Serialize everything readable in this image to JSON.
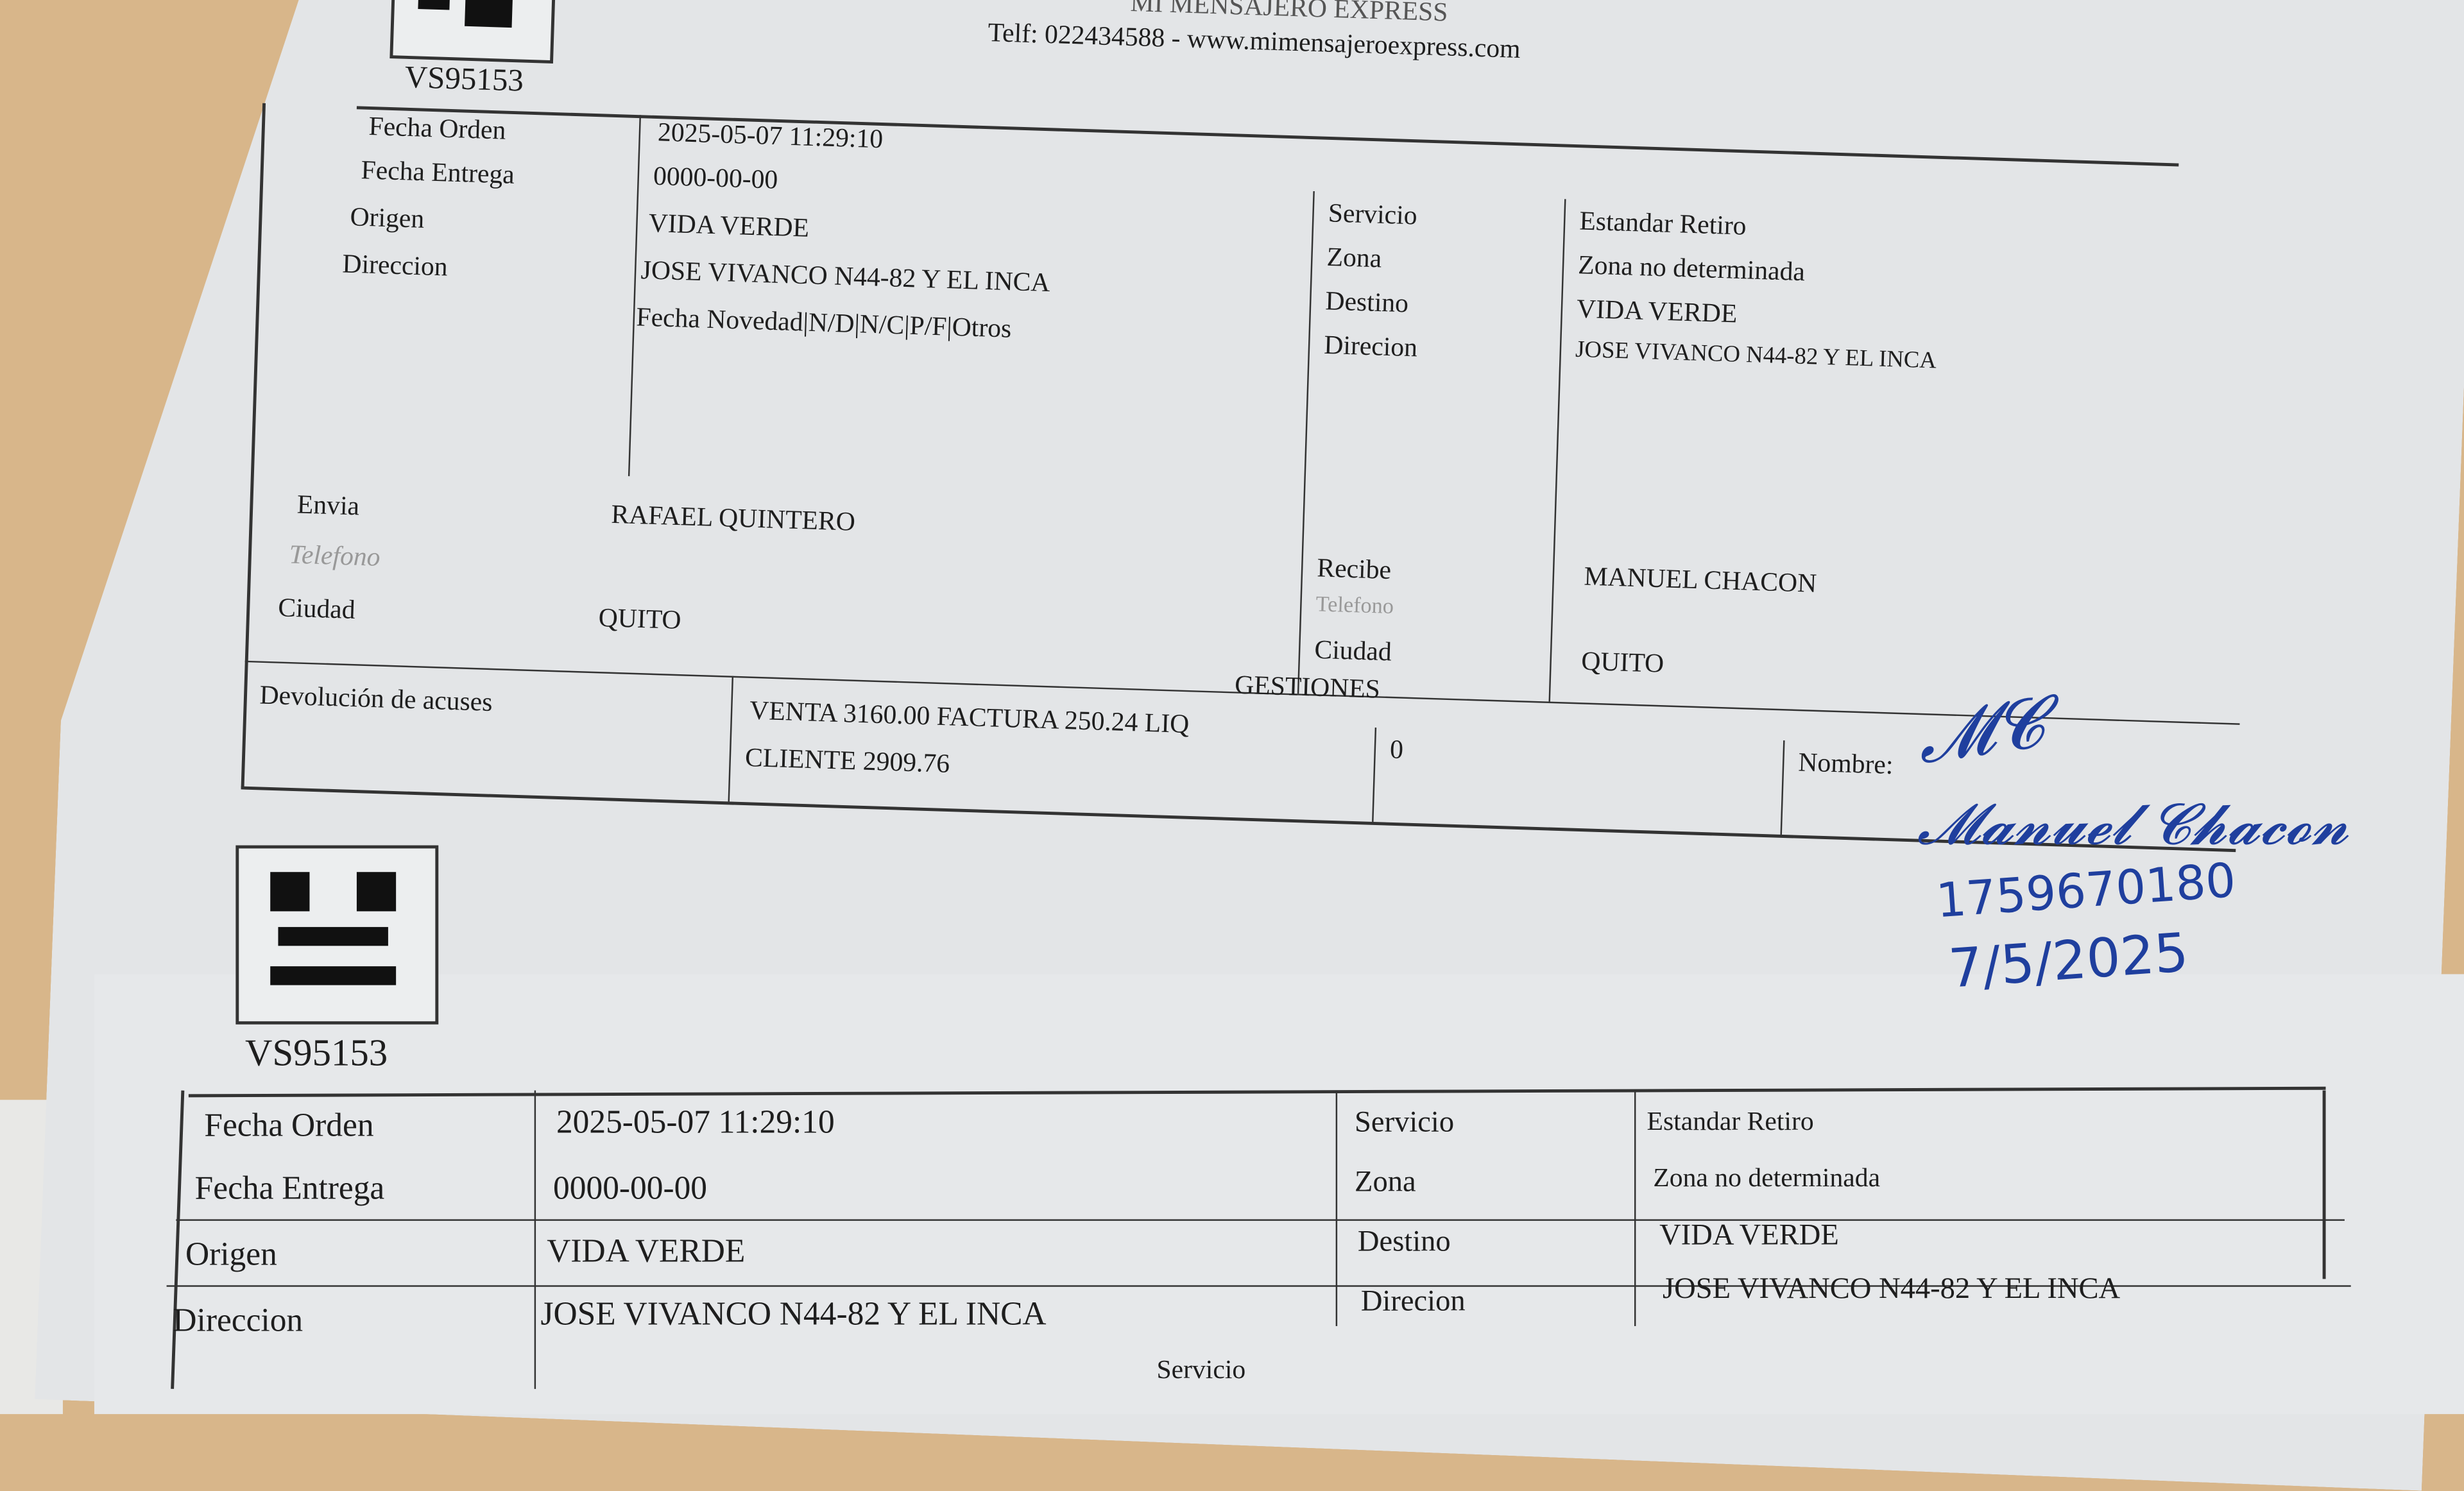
{
  "header": {
    "company": "MI MENSAJERO EXPRESS",
    "contact": "Telf: 022434588 - www.mimensajeroexpress.com"
  },
  "upper_form": {
    "guide_number": "VS95153",
    "fecha_orden_label": "Fecha Orden",
    "fecha_orden": "2025-05-07 11:29:10",
    "fecha_entrega_label": "Fecha Entrega",
    "fecha_entrega": "0000-00-00",
    "origen_label": "Origen",
    "origen": "VIDA VERDE",
    "direccion_label": "Direccion",
    "direccion": "JOSE VIVANCO N44-82 Y EL INCA",
    "novedad_header": "Fecha Novedad|N/D|N/C|P/F|Otros",
    "envia_label": "Envia",
    "envia": "RAFAEL QUINTERO",
    "telefono_label": "Telefono",
    "ciudad_label": "Ciudad",
    "ciudad": "QUITO",
    "servicio_label": "Servicio",
    "servicio": "Estandar Retiro",
    "zona_label": "Zona",
    "zona": "Zona no determinada",
    "destino_label": "Destino",
    "destino": "VIDA VERDE",
    "direcion_label": "Direcion",
    "direcion": "JOSE VIVANCO N44-82 Y EL INCA",
    "recibe_label": "Recibe",
    "recibe": "MANUEL CHACON",
    "telefono2_label": "Telefono",
    "ciudad2_label": "Ciudad",
    "ciudad2": "QUITO",
    "gestiones_label": "GESTIONES",
    "devolucion_label": "Devolución de acuses",
    "gestion_line1": "VENTA 3160.00 FACTURA 250.24 LIQ",
    "gestion_line2": "CLIENTE 2909.76",
    "gestion_count": "0",
    "nombre_label": "Nombre:",
    "handwritten_id": "1759670180",
    "handwritten_date": "7/5/2025"
  },
  "lower_form": {
    "guide_number": "VS95153",
    "fecha_orden_label": "Fecha Orden",
    "fecha_orden": "2025-05-07 11:29:10",
    "fecha_entrega_label": "Fecha Entrega",
    "fecha_entrega": "0000-00-00",
    "origen_label": "Origen",
    "origen": "VIDA VERDE",
    "direccion_label": "Direccion",
    "direccion": "JOSE VIVANCO N44-82 Y EL INCA",
    "servicio_label": "Servicio",
    "servicio": "Estandar Retiro",
    "zona_label": "Zona",
    "zona": "Zona no determinada",
    "destino_label": "Destino",
    "destino": "VIDA VERDE",
    "direcion_label": "Direcion",
    "direcion": "JOSE VIVANCO N44-82 Y EL INCA",
    "servicio_partial": "Servicio"
  },
  "colors": {
    "ink": "#1f3f9e",
    "background": "#d8b68a",
    "paper": "#e3e5e7"
  }
}
